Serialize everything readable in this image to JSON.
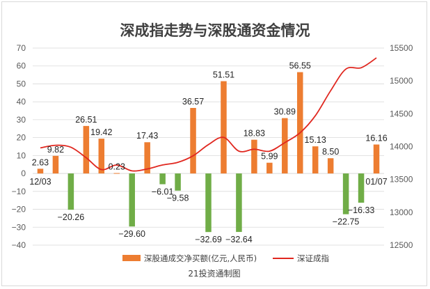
{
  "chart_data": {
    "type": "bar+line",
    "title": "深成指走势与深股通资金情况",
    "source": "21投资通制图",
    "x_labels": [
      "12/03",
      "01/07"
    ],
    "y_left": {
      "min": -40,
      "max": 70,
      "step": 10,
      "ticks": [
        "70",
        "60",
        "50",
        "40",
        "30",
        "20",
        "10",
        "0",
        "−10",
        "−20",
        "−30",
        "−40"
      ]
    },
    "y_right": {
      "min": 12500,
      "max": 15500,
      "step": 500,
      "ticks": [
        "15500",
        "15000",
        "14500",
        "14000",
        "13500",
        "13000",
        "12500"
      ]
    },
    "series": [
      {
        "name": "深股通成交净买额(亿元,人民币)",
        "kind": "bar",
        "axis": "left",
        "values": [
          2.63,
          9.82,
          -20.26,
          26.51,
          19.42,
          0.23,
          -29.6,
          17.43,
          -6.01,
          -9.58,
          36.57,
          -32.69,
          51.51,
          -32.64,
          18.83,
          5.99,
          30.89,
          56.55,
          15.13,
          8.5,
          -22.75,
          -16.33,
          16.16
        ],
        "labels": [
          "2.63",
          "9.82",
          "−20.26",
          "26.51",
          "19.42",
          "0.23",
          "−29.60",
          "17.43",
          "−6.01",
          "−9.58",
          "36.57",
          "−32.69",
          "51.51",
          "−32.64",
          "18.83",
          "5.99",
          "30.89",
          "56.55",
          "15.13",
          "8.50",
          "−22.75",
          "−16.33",
          "16.16"
        ]
      },
      {
        "name": "深证成指",
        "kind": "line",
        "axis": "right",
        "values": [
          13980,
          14020,
          13990,
          13830,
          13650,
          13720,
          13630,
          13660,
          13720,
          13760,
          13860,
          14030,
          14140,
          13930,
          13960,
          13930,
          14060,
          14210,
          14470,
          14850,
          15180,
          15200,
          15350
        ]
      }
    ],
    "colors": {
      "positive": "#ed7d31",
      "negative": "#70ad47",
      "line": "#e0271f",
      "grid": "#d9d9d9"
    },
    "legend_position": "bottom"
  }
}
